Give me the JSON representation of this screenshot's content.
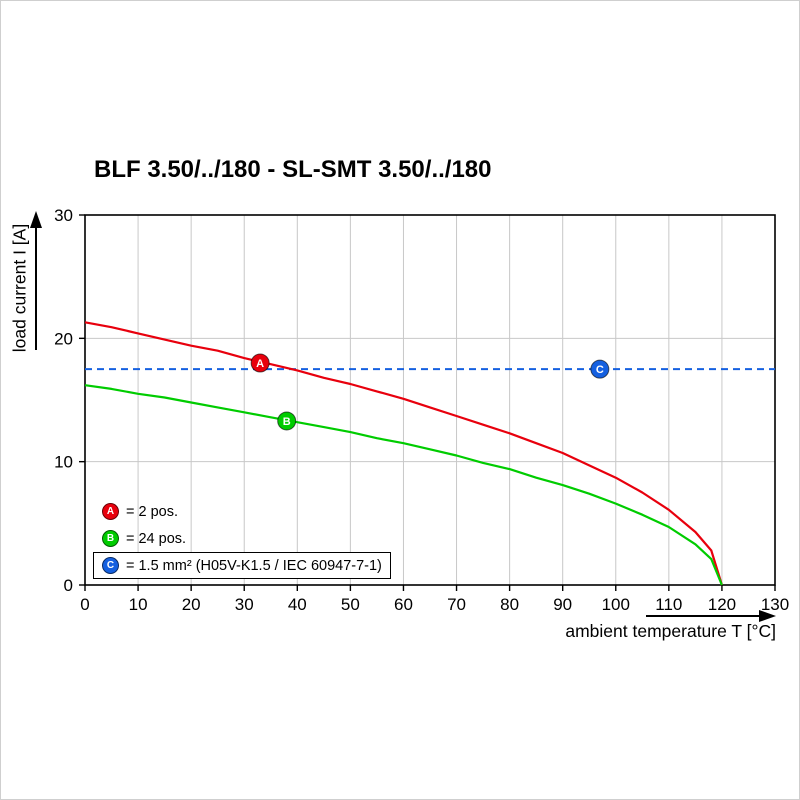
{
  "page": {
    "title": "BLF 3.50/../180 - SL-SMT 3.50/../180"
  },
  "chart_data": {
    "type": "line",
    "title": "BLF 3.50/../180 - SL-SMT 3.50/../180",
    "xlabel": "ambient temperature T [°C]",
    "ylabel": "load current I [A]",
    "xlim": [
      0,
      130
    ],
    "ylim": [
      0,
      30
    ],
    "xticks": [
      0,
      10,
      20,
      30,
      40,
      50,
      60,
      70,
      80,
      90,
      100,
      110,
      120,
      130
    ],
    "yticks": [
      0,
      10,
      20,
      30
    ],
    "grid": true,
    "grid_color": "#c8c8c8",
    "legend_position": "bottom-left-inside",
    "series": [
      {
        "name": "A",
        "label": "= 2 pos.",
        "color": "#e8000d",
        "marker": {
          "x": 33,
          "y": 18.0
        },
        "points": [
          [
            0,
            21.3
          ],
          [
            5,
            20.9
          ],
          [
            10,
            20.4
          ],
          [
            15,
            19.9
          ],
          [
            20,
            19.4
          ],
          [
            25,
            19.0
          ],
          [
            30,
            18.4
          ],
          [
            35,
            17.9
          ],
          [
            40,
            17.4
          ],
          [
            45,
            16.8
          ],
          [
            50,
            16.3
          ],
          [
            55,
            15.7
          ],
          [
            60,
            15.1
          ],
          [
            65,
            14.4
          ],
          [
            70,
            13.7
          ],
          [
            75,
            13.0
          ],
          [
            80,
            12.3
          ],
          [
            85,
            11.5
          ],
          [
            90,
            10.7
          ],
          [
            95,
            9.7
          ],
          [
            100,
            8.7
          ],
          [
            105,
            7.5
          ],
          [
            110,
            6.1
          ],
          [
            115,
            4.3
          ],
          [
            118,
            2.8
          ],
          [
            120,
            0
          ]
        ]
      },
      {
        "name": "B",
        "label": "= 24 pos.",
        "color": "#00cc00",
        "marker": {
          "x": 38,
          "y": 13.3
        },
        "points": [
          [
            0,
            16.2
          ],
          [
            5,
            15.9
          ],
          [
            10,
            15.5
          ],
          [
            15,
            15.2
          ],
          [
            20,
            14.8
          ],
          [
            25,
            14.4
          ],
          [
            30,
            14.0
          ],
          [
            35,
            13.6
          ],
          [
            40,
            13.2
          ],
          [
            45,
            12.8
          ],
          [
            50,
            12.4
          ],
          [
            55,
            11.9
          ],
          [
            60,
            11.5
          ],
          [
            65,
            11.0
          ],
          [
            70,
            10.5
          ],
          [
            75,
            9.9
          ],
          [
            80,
            9.4
          ],
          [
            85,
            8.7
          ],
          [
            90,
            8.1
          ],
          [
            95,
            7.4
          ],
          [
            100,
            6.6
          ],
          [
            105,
            5.7
          ],
          [
            110,
            4.7
          ],
          [
            115,
            3.3
          ],
          [
            118,
            2.1
          ],
          [
            120,
            0
          ]
        ]
      },
      {
        "name": "C",
        "label": "= 1.5 mm² (H05V-K1.5 / IEC 60947-7-1)",
        "color": "#1560e0",
        "style": "dashed-horizontal",
        "value": 17.5,
        "marker": {
          "x": 97,
          "y": 17.5
        },
        "legend_boxed": true
      }
    ]
  }
}
